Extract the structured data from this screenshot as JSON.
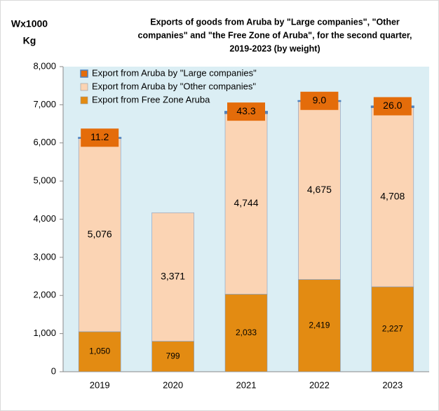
{
  "chart_data": {
    "type": "stacked_bar",
    "title": [
      "Exports  of goods from Aruba by \"Large companies\", \"Other",
      "companies\" and \"the Free Zone of Aruba\", for the second quarter,",
      "2019-2023 (by weight)"
    ],
    "y_label": [
      "Wx1000",
      "Kg"
    ],
    "categories": [
      "2019",
      "2020",
      "2021",
      "2022",
      "2023"
    ],
    "series": [
      {
        "name": "Export from Free Zone Aruba",
        "color": "#e38b12",
        "values": [
          1050,
          799,
          2033,
          2419,
          2227
        ],
        "value_labels": [
          "1,050",
          "799",
          "2,033",
          "2,419",
          "2,227"
        ]
      },
      {
        "name": "Export from Aruba by \"Other companies\"",
        "color": "#fbd4b4",
        "values": [
          5076,
          3371,
          4744,
          4675,
          4708
        ],
        "value_labels": [
          "5,076",
          "3,371",
          "4,744",
          "4,675",
          "4,708"
        ]
      },
      {
        "name": "Export from Aruba by \"Large companies\"",
        "color": "#e46c0a",
        "values": [
          11.2,
          null,
          43.3,
          9.0,
          26.0
        ],
        "value_labels": [
          "11.2",
          null,
          "43.3",
          "9.0",
          "26.0"
        ]
      }
    ],
    "ylim": [
      0,
      8000
    ],
    "yticks": [
      0,
      {
        "value": 1000,
        "label": "1,000"
      },
      {
        "value": 2000,
        "label": "2,000"
      },
      {
        "value": 3000,
        "label": "3,000"
      },
      {
        "value": 4000,
        "label": "4,000"
      },
      {
        "value": 5000,
        "label": "5,000"
      },
      {
        "value": 6000,
        "label": "6,000"
      },
      {
        "value": 7000,
        "label": "7,000"
      },
      {
        "value": 8000,
        "label": "8,000"
      }
    ],
    "legend": "upper left"
  }
}
